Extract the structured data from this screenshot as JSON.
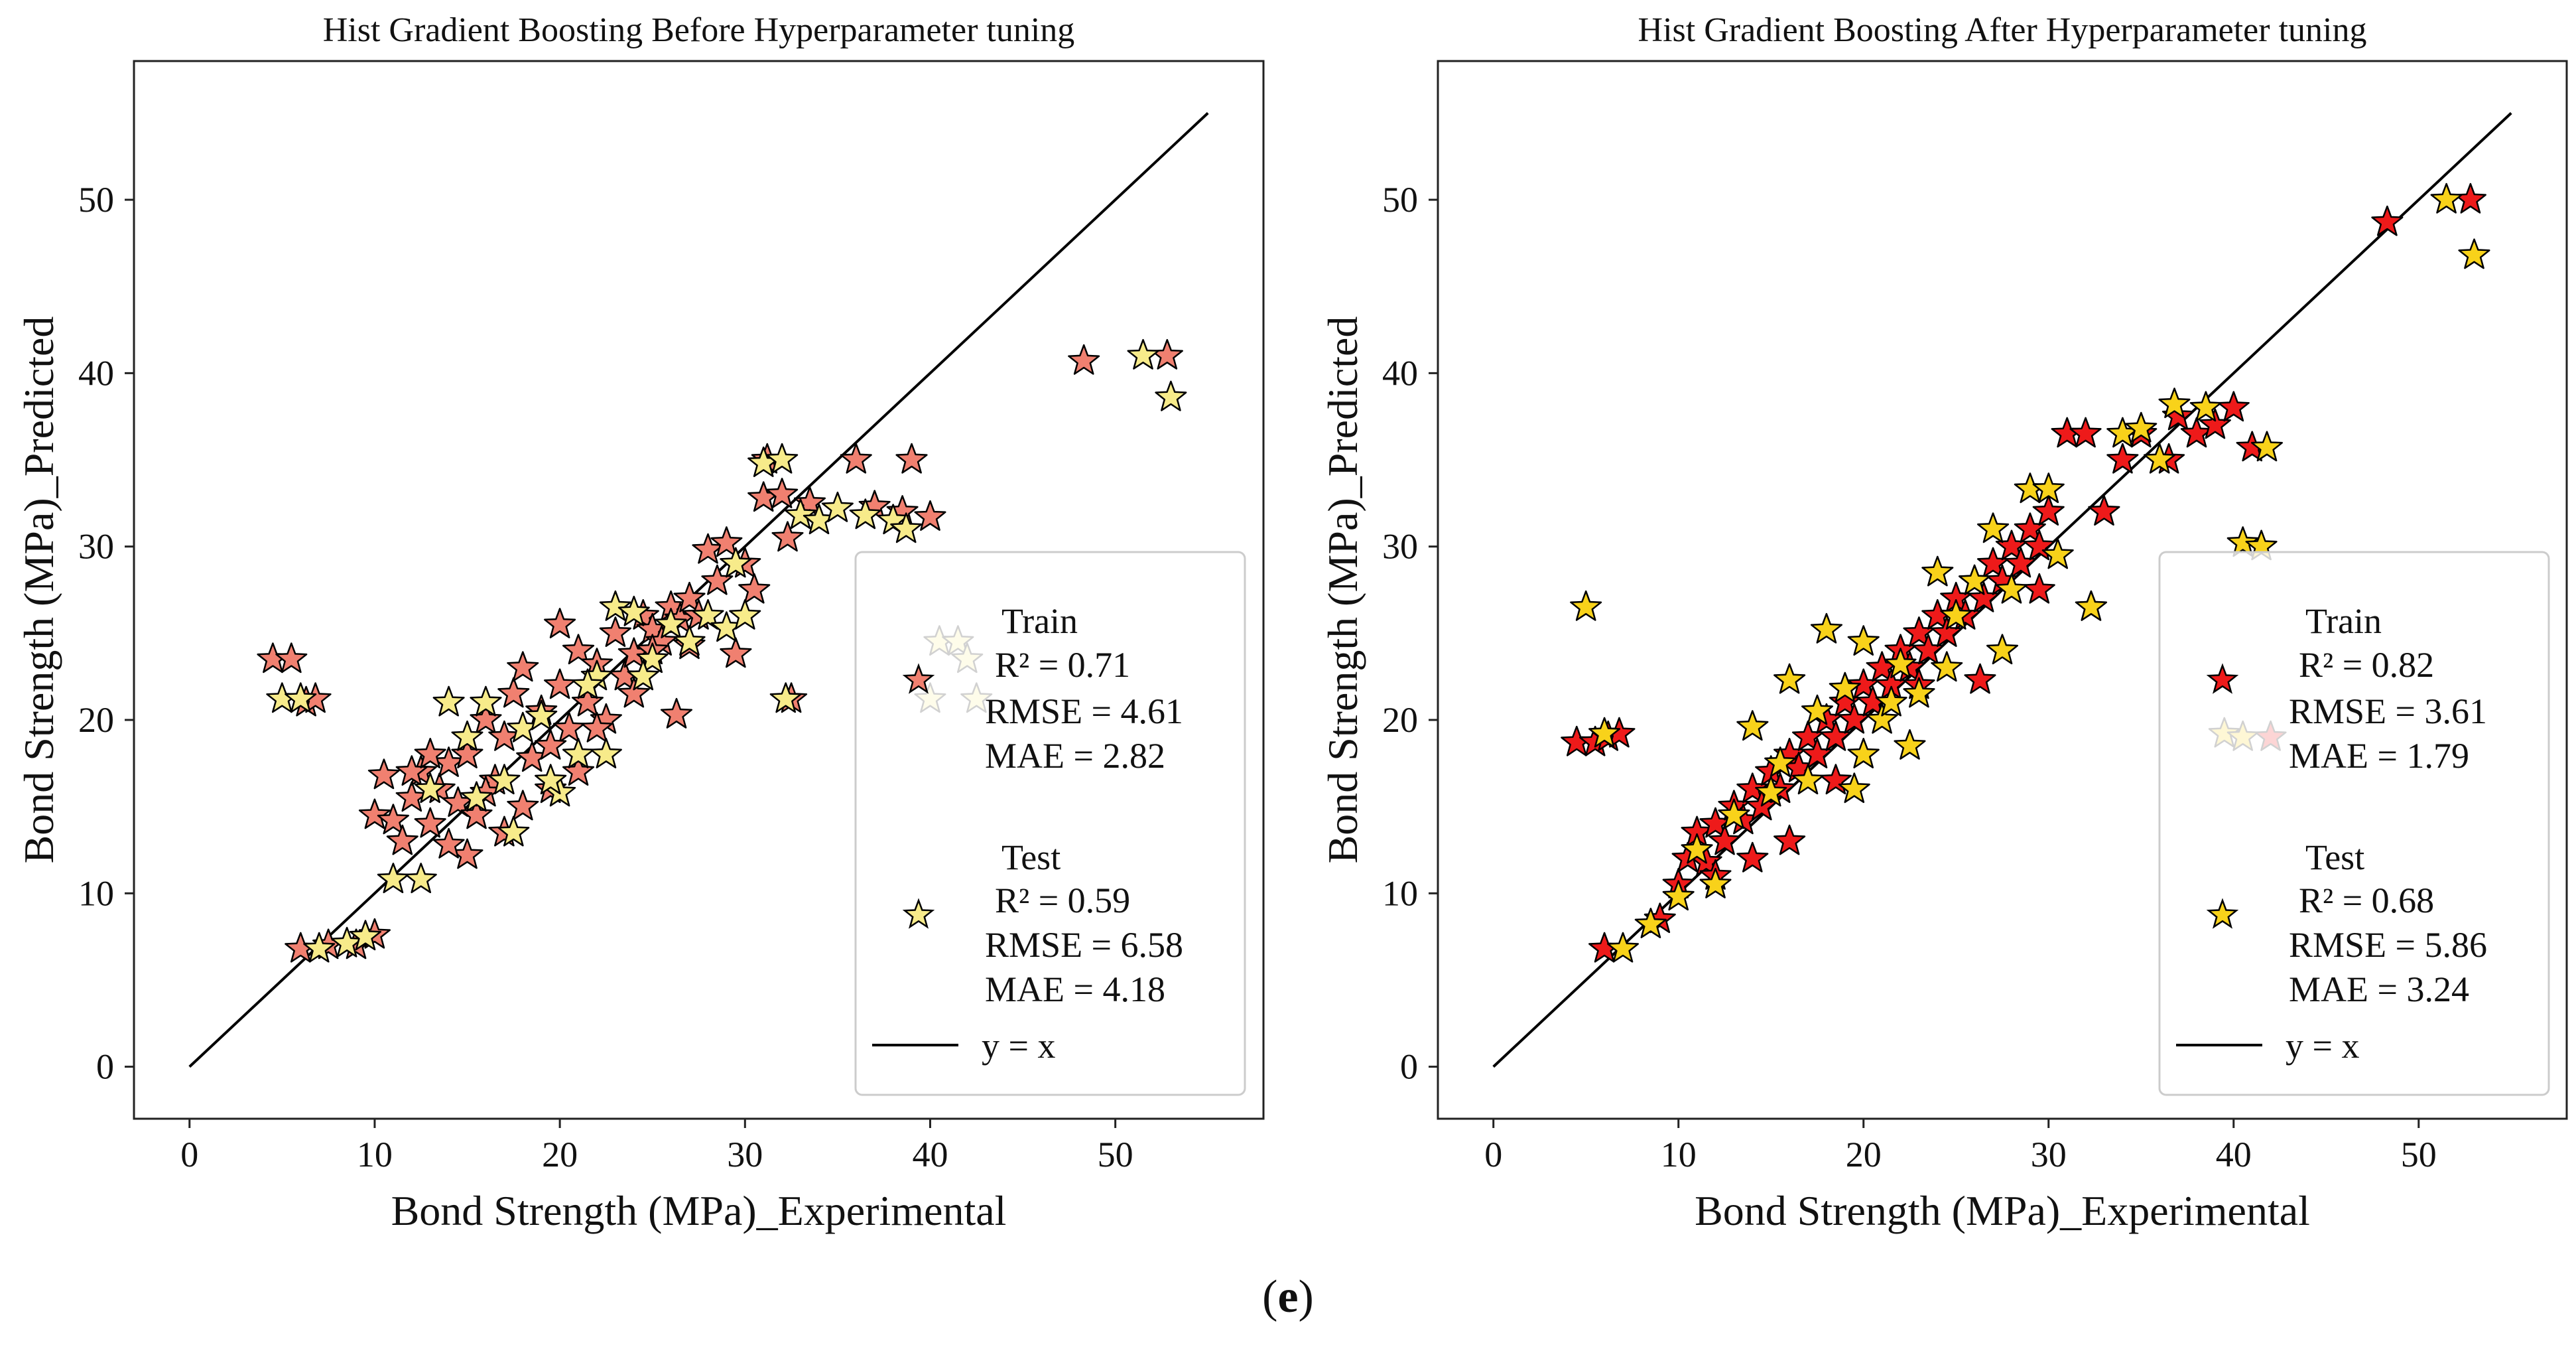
{
  "caption": {
    "open": "(",
    "letter": "e",
    "close": ")"
  },
  "colors": {
    "left_train": "#f08070",
    "left_test": "#f7eb8a",
    "right_train": "#ee1a1a",
    "right_test": "#f8d21a",
    "edge": "#000000",
    "line": "#000000"
  },
  "chart_data": [
    {
      "type": "scatter",
      "title": "Hist Gradient Boosting Before Hyperparameter tuning",
      "xlabel": "Bond Strength (MPa)_Experimental",
      "ylabel": "Bond Strength (MPa)_Predicted",
      "xlim": [
        -3,
        58
      ],
      "ylim": [
        -3,
        58
      ],
      "xticks": [
        0,
        10,
        20,
        30,
        40,
        50
      ],
      "yticks": [
        0,
        10,
        20,
        30,
        40,
        50
      ],
      "reference_line": {
        "label": "y = x",
        "x": [
          0,
          55
        ],
        "y": [
          0,
          55
        ]
      },
      "legend_position": "lower-right",
      "legend": {
        "train": [
          "Train",
          "R² = 0.71",
          "RMSE = 4.61",
          "MAE = 2.82"
        ],
        "test": [
          "Test",
          "R² = 0.59",
          "RMSE = 6.58",
          "MAE = 4.18"
        ],
        "line": "y = x"
      },
      "series": [
        {
          "name": "Train",
          "color_key": "left_train",
          "points": [
            [
              4.5,
              23.5
            ],
            [
              5.5,
              23.5
            ],
            [
              6.3,
              21
            ],
            [
              6.8,
              21.2
            ],
            [
              6,
              6.8
            ],
            [
              7.5,
              7
            ],
            [
              9,
              7
            ],
            [
              10,
              7.6
            ],
            [
              10,
              14.5
            ],
            [
              10.5,
              16.8
            ],
            [
              11,
              14.2
            ],
            [
              11.5,
              13
            ],
            [
              12,
              15.5
            ],
            [
              12.5,
              17
            ],
            [
              13,
              14
            ],
            [
              13.5,
              16
            ],
            [
              14,
              17.5
            ],
            [
              14.5,
              15.2
            ],
            [
              15,
              18
            ],
            [
              15.5,
              14.5
            ],
            [
              16,
              20
            ],
            [
              16.5,
              16.5
            ],
            [
              17,
              19
            ],
            [
              17.5,
              21.5
            ],
            [
              18,
              15
            ],
            [
              18.5,
              17.8
            ],
            [
              19,
              20.5
            ],
            [
              19.5,
              16
            ],
            [
              20,
              22
            ],
            [
              20.5,
              19.5
            ],
            [
              21,
              24
            ],
            [
              21.5,
              21
            ],
            [
              22,
              23.2
            ],
            [
              22.5,
              20
            ],
            [
              23,
              25
            ],
            [
              23.5,
              22.5
            ],
            [
              24,
              23.8
            ],
            [
              24.5,
              26
            ],
            [
              25,
              25.2
            ],
            [
              25.5,
              24.5
            ],
            [
              26,
              26.5
            ],
            [
              26.5,
              25.8
            ],
            [
              27,
              27
            ],
            [
              27.5,
              26
            ],
            [
              28,
              29.8
            ],
            [
              28.5,
              28
            ],
            [
              29,
              30.2
            ],
            [
              29.5,
              23.8
            ],
            [
              30,
              29
            ],
            [
              30.5,
              27.5
            ],
            [
              31,
              32.8
            ],
            [
              31.2,
              35
            ],
            [
              32,
              33
            ],
            [
              32.3,
              30.5
            ],
            [
              32.5,
              21.2
            ],
            [
              33.5,
              32.5
            ],
            [
              36,
              35
            ],
            [
              37,
              32.3
            ],
            [
              38.5,
              32
            ],
            [
              39,
              35
            ],
            [
              40,
              31.7
            ],
            [
              48.3,
              40.7
            ],
            [
              52.8,
              41
            ],
            [
              26.3,
              20.3
            ],
            [
              17,
              13.5
            ],
            [
              15,
              12.2
            ],
            [
              19.5,
              18.5
            ],
            [
              21,
              17
            ],
            [
              24,
              21.5
            ],
            [
              12,
              17
            ],
            [
              13,
              18
            ],
            [
              22,
              19.5
            ],
            [
              16,
              15.8
            ],
            [
              18,
              23
            ],
            [
              20,
              25.5
            ],
            [
              25,
              24
            ],
            [
              14,
              12.8
            ],
            [
              27,
              24.3
            ]
          ]
        },
        {
          "name": "Test",
          "color_key": "left_test",
          "points": [
            [
              5,
              21.2
            ],
            [
              6,
              21.2
            ],
            [
              7,
              6.8
            ],
            [
              8.5,
              7.1
            ],
            [
              9.5,
              7.5
            ],
            [
              11,
              10.8
            ],
            [
              12.5,
              10.8
            ],
            [
              13,
              16
            ],
            [
              14,
              21
            ],
            [
              15,
              19
            ],
            [
              16,
              21
            ],
            [
              17,
              16.5
            ],
            [
              18,
              19.5
            ],
            [
              19,
              20.2
            ],
            [
              20,
              15.8
            ],
            [
              21,
              18
            ],
            [
              22,
              22.5
            ],
            [
              22.5,
              18
            ],
            [
              23,
              26.5
            ],
            [
              24,
              26.2
            ],
            [
              25,
              23.5
            ],
            [
              26,
              25.5
            ],
            [
              27,
              24.5
            ],
            [
              28,
              26
            ],
            [
              29,
              25.3
            ],
            [
              29.5,
              29
            ],
            [
              30,
              26
            ],
            [
              31,
              34.8
            ],
            [
              32,
              35
            ],
            [
              32.2,
              21.2
            ],
            [
              33,
              31.8
            ],
            [
              34,
              31.5
            ],
            [
              35,
              32.2
            ],
            [
              36.5,
              31.8
            ],
            [
              38,
              31.5
            ],
            [
              38.7,
              31
            ],
            [
              40,
              21.2
            ],
            [
              40.5,
              24.5
            ],
            [
              41.5,
              24.5
            ],
            [
              42,
              23.5
            ],
            [
              42.5,
              21.2
            ],
            [
              51.5,
              41
            ],
            [
              53,
              38.6
            ],
            [
              17.5,
              13.5
            ],
            [
              19.5,
              16.5
            ],
            [
              21.5,
              22
            ],
            [
              24.5,
              22.5
            ],
            [
              15.5,
              15.5
            ]
          ]
        }
      ]
    },
    {
      "type": "scatter",
      "title": "Hist Gradient Boosting After Hyperparameter tuning",
      "xlabel": "Bond Strength (MPa)_Experimental",
      "ylabel": "Bond Strength (MPa)_Predicted",
      "xlim": [
        -3,
        58
      ],
      "ylim": [
        -3,
        58
      ],
      "xticks": [
        0,
        10,
        20,
        30,
        40,
        50
      ],
      "yticks": [
        0,
        10,
        20,
        30,
        40,
        50
      ],
      "reference_line": {
        "label": "y = x",
        "x": [
          0,
          55
        ],
        "y": [
          0,
          55
        ]
      },
      "legend_position": "lower-right",
      "legend": {
        "train": [
          "Train",
          "R² = 0.82",
          "RMSE = 3.61",
          "MAE = 1.79"
        ],
        "test": [
          "Test",
          "R² = 0.68",
          "RMSE = 5.86",
          "MAE = 3.24"
        ],
        "line": "y = x"
      },
      "series": [
        {
          "name": "Train",
          "color_key": "right_train",
          "points": [
            [
              4.5,
              18.7
            ],
            [
              5.5,
              18.7
            ],
            [
              6.2,
              19
            ],
            [
              6.8,
              19.2
            ],
            [
              6,
              6.8
            ],
            [
              9,
              8.5
            ],
            [
              10,
              10.5
            ],
            [
              10.5,
              12
            ],
            [
              11,
              13.5
            ],
            [
              11.5,
              11.8
            ],
            [
              12,
              14
            ],
            [
              12.5,
              13
            ],
            [
              13,
              15
            ],
            [
              13.5,
              14.2
            ],
            [
              14,
              16
            ],
            [
              14.5,
              15
            ],
            [
              15,
              17
            ],
            [
              15.5,
              16
            ],
            [
              16,
              18
            ],
            [
              16.5,
              17.2
            ],
            [
              17,
              19
            ],
            [
              17.5,
              18
            ],
            [
              18,
              20
            ],
            [
              18.5,
              19
            ],
            [
              19,
              21
            ],
            [
              19.5,
              20
            ],
            [
              20,
              22
            ],
            [
              20.5,
              21
            ],
            [
              21,
              23
            ],
            [
              21.5,
              22
            ],
            [
              22,
              24
            ],
            [
              22.5,
              23
            ],
            [
              23,
              25
            ],
            [
              23.5,
              24
            ],
            [
              24,
              26
            ],
            [
              24.5,
              25
            ],
            [
              25,
              27
            ],
            [
              25.5,
              26
            ],
            [
              26,
              28
            ],
            [
              26.5,
              27
            ],
            [
              27,
              29
            ],
            [
              27.5,
              28
            ],
            [
              28,
              30
            ],
            [
              28.5,
              29
            ],
            [
              29,
              31
            ],
            [
              29.5,
              30
            ],
            [
              30,
              32
            ],
            [
              31,
              36.5
            ],
            [
              32,
              36.5
            ],
            [
              33,
              32
            ],
            [
              34,
              35
            ],
            [
              35,
              36.5
            ],
            [
              36.5,
              35
            ],
            [
              37,
              37.5
            ],
            [
              38,
              36.5
            ],
            [
              39,
              37
            ],
            [
              40,
              38
            ],
            [
              41,
              35.7
            ],
            [
              42,
              19
            ],
            [
              48.3,
              48.7
            ],
            [
              52.8,
              50
            ],
            [
              26.3,
              22.3
            ],
            [
              16,
              13
            ],
            [
              14,
              12
            ],
            [
              18.5,
              16.5
            ],
            [
              23,
              22
            ],
            [
              29.5,
              27.5
            ],
            [
              32.3,
              26.5
            ],
            [
              12,
              11
            ]
          ]
        },
        {
          "name": "Test",
          "color_key": "right_test",
          "points": [
            [
              5,
              26.5
            ],
            [
              6,
              19.2
            ],
            [
              7,
              6.8
            ],
            [
              8.5,
              8.2
            ],
            [
              10,
              9.8
            ],
            [
              11,
              12.5
            ],
            [
              12,
              10.5
            ],
            [
              13,
              14.5
            ],
            [
              14,
              19.6
            ],
            [
              15,
              15.8
            ],
            [
              16,
              22.3
            ],
            [
              17,
              16.5
            ],
            [
              18,
              25.2
            ],
            [
              19,
              21.8
            ],
            [
              20,
              24.5
            ],
            [
              21,
              20
            ],
            [
              22,
              23.2
            ],
            [
              23,
              21.5
            ],
            [
              24,
              28.5
            ],
            [
              25,
              26
            ],
            [
              26,
              28
            ],
            [
              27,
              31
            ],
            [
              28,
              27.5
            ],
            [
              29,
              33.3
            ],
            [
              30,
              33.3
            ],
            [
              30.5,
              29.5
            ],
            [
              32.3,
              26.5
            ],
            [
              34,
              36.5
            ],
            [
              35,
              36.8
            ],
            [
              36,
              35
            ],
            [
              36.8,
              38.2
            ],
            [
              38.5,
              38
            ],
            [
              39.5,
              19.2
            ],
            [
              40.5,
              30.2
            ],
            [
              40.5,
              19
            ],
            [
              41.5,
              30
            ],
            [
              41.8,
              35.7
            ],
            [
              51.5,
              50
            ],
            [
              53,
              46.8
            ],
            [
              19.5,
              16
            ],
            [
              21.5,
              21
            ],
            [
              24.5,
              23
            ],
            [
              27.5,
              24
            ],
            [
              15.5,
              17.5
            ],
            [
              17.5,
              20.5
            ],
            [
              22.5,
              18.5
            ],
            [
              20,
              18
            ]
          ]
        }
      ]
    }
  ]
}
